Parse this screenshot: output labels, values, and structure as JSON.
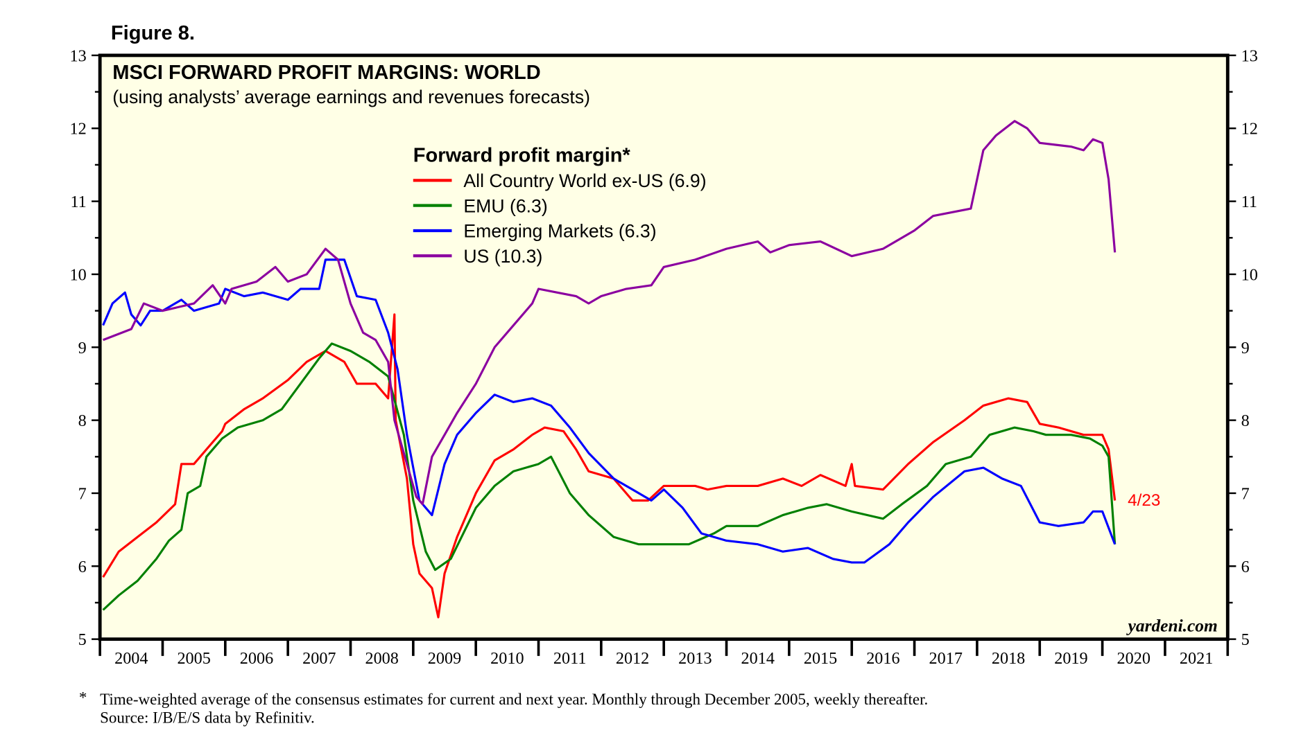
{
  "figure_label": "Figure 8.",
  "watermark": "yardeni.com",
  "footnote": {
    "marker": "*",
    "line1": "Time-weighted average of the consensus estimates for current and next year. Monthly through December 2005, weekly thereafter.",
    "line2": "Source: I/B/E/S data by Refinitiv."
  },
  "chart_data": {
    "type": "line",
    "title": "MSCI FORWARD PROFIT MARGINS: WORLD",
    "subtitle": "(using analysts’ average earnings and revenues forecasts)",
    "legend_title": "Forward profit margin*",
    "legend_placement": "top-center",
    "xlabel": "",
    "ylabel": "",
    "xlim": [
      2004,
      2022
    ],
    "ylim": [
      5,
      13
    ],
    "x_tick_labels": [
      "2004",
      "2005",
      "2006",
      "2007",
      "2008",
      "2009",
      "2010",
      "2011",
      "2012",
      "2013",
      "2014",
      "2015",
      "2016",
      "2017",
      "2018",
      "2019",
      "2020",
      "2021"
    ],
    "y_ticks": [
      5,
      6,
      7,
      8,
      9,
      10,
      11,
      12,
      13
    ],
    "end_annotation": "4/23",
    "end_annotation_color": "#ff0000",
    "series": [
      {
        "name": "All Country World ex-US (6.9)",
        "color": "#ff0000",
        "points": [
          [
            2004.05,
            5.85
          ],
          [
            2004.3,
            6.2
          ],
          [
            2004.6,
            6.4
          ],
          [
            2004.9,
            6.6
          ],
          [
            2005.2,
            6.85
          ],
          [
            2005.3,
            7.4
          ],
          [
            2005.5,
            7.4
          ],
          [
            2005.7,
            7.6
          ],
          [
            2005.95,
            7.85
          ],
          [
            2006.0,
            7.95
          ],
          [
            2006.3,
            8.15
          ],
          [
            2006.6,
            8.3
          ],
          [
            2007.0,
            8.55
          ],
          [
            2007.3,
            8.8
          ],
          [
            2007.6,
            8.95
          ],
          [
            2007.9,
            8.8
          ],
          [
            2008.1,
            8.5
          ],
          [
            2008.4,
            8.5
          ],
          [
            2008.6,
            8.3
          ],
          [
            2008.7,
            9.45
          ],
          [
            2008.72,
            8.0
          ],
          [
            2008.9,
            7.2
          ],
          [
            2009.0,
            6.3
          ],
          [
            2009.1,
            5.9
          ],
          [
            2009.3,
            5.7
          ],
          [
            2009.4,
            5.3
          ],
          [
            2009.5,
            5.9
          ],
          [
            2009.7,
            6.4
          ],
          [
            2010.0,
            7.0
          ],
          [
            2010.3,
            7.45
          ],
          [
            2010.6,
            7.6
          ],
          [
            2010.9,
            7.8
          ],
          [
            2011.1,
            7.9
          ],
          [
            2011.4,
            7.85
          ],
          [
            2011.6,
            7.6
          ],
          [
            2011.8,
            7.3
          ],
          [
            2012.2,
            7.2
          ],
          [
            2012.5,
            6.9
          ],
          [
            2012.75,
            6.9
          ],
          [
            2013.0,
            7.1
          ],
          [
            2013.5,
            7.1
          ],
          [
            2013.7,
            7.05
          ],
          [
            2014.0,
            7.1
          ],
          [
            2014.5,
            7.1
          ],
          [
            2014.9,
            7.2
          ],
          [
            2015.2,
            7.1
          ],
          [
            2015.5,
            7.25
          ],
          [
            2015.9,
            7.1
          ],
          [
            2016.0,
            7.4
          ],
          [
            2016.05,
            7.1
          ],
          [
            2016.5,
            7.05
          ],
          [
            2016.9,
            7.4
          ],
          [
            2017.3,
            7.7
          ],
          [
            2017.8,
            8.0
          ],
          [
            2018.1,
            8.2
          ],
          [
            2018.5,
            8.3
          ],
          [
            2018.8,
            8.25
          ],
          [
            2019.0,
            7.95
          ],
          [
            2019.3,
            7.9
          ],
          [
            2019.7,
            7.8
          ],
          [
            2020.0,
            7.8
          ],
          [
            2020.1,
            7.6
          ],
          [
            2020.2,
            6.9
          ]
        ]
      },
      {
        "name": "EMU (6.3)",
        "color": "#008000",
        "points": [
          [
            2004.05,
            5.4
          ],
          [
            2004.3,
            5.6
          ],
          [
            2004.6,
            5.8
          ],
          [
            2004.9,
            6.1
          ],
          [
            2005.1,
            6.35
          ],
          [
            2005.3,
            6.5
          ],
          [
            2005.4,
            7.0
          ],
          [
            2005.6,
            7.1
          ],
          [
            2005.7,
            7.5
          ],
          [
            2005.95,
            7.75
          ],
          [
            2006.2,
            7.9
          ],
          [
            2006.6,
            8.0
          ],
          [
            2006.9,
            8.15
          ],
          [
            2007.2,
            8.5
          ],
          [
            2007.5,
            8.85
          ],
          [
            2007.7,
            9.05
          ],
          [
            2008.0,
            8.95
          ],
          [
            2008.3,
            8.8
          ],
          [
            2008.6,
            8.6
          ],
          [
            2008.85,
            7.8
          ],
          [
            2009.0,
            6.9
          ],
          [
            2009.2,
            6.2
          ],
          [
            2009.35,
            5.95
          ],
          [
            2009.6,
            6.1
          ],
          [
            2010.0,
            6.8
          ],
          [
            2010.3,
            7.1
          ],
          [
            2010.6,
            7.3
          ],
          [
            2011.0,
            7.4
          ],
          [
            2011.2,
            7.5
          ],
          [
            2011.5,
            7.0
          ],
          [
            2011.8,
            6.7
          ],
          [
            2012.2,
            6.4
          ],
          [
            2012.6,
            6.3
          ],
          [
            2013.0,
            6.3
          ],
          [
            2013.4,
            6.3
          ],
          [
            2013.8,
            6.45
          ],
          [
            2014.0,
            6.55
          ],
          [
            2014.5,
            6.55
          ],
          [
            2014.9,
            6.7
          ],
          [
            2015.3,
            6.8
          ],
          [
            2015.6,
            6.85
          ],
          [
            2016.0,
            6.75
          ],
          [
            2016.5,
            6.65
          ],
          [
            2016.8,
            6.85
          ],
          [
            2017.2,
            7.1
          ],
          [
            2017.5,
            7.4
          ],
          [
            2017.9,
            7.5
          ],
          [
            2018.2,
            7.8
          ],
          [
            2018.6,
            7.9
          ],
          [
            2018.9,
            7.85
          ],
          [
            2019.1,
            7.8
          ],
          [
            2019.5,
            7.8
          ],
          [
            2019.8,
            7.75
          ],
          [
            2020.0,
            7.65
          ],
          [
            2020.1,
            7.5
          ],
          [
            2020.2,
            6.3
          ]
        ]
      },
      {
        "name": "Emerging Markets (6.3)",
        "color": "#0000ff",
        "points": [
          [
            2004.05,
            9.3
          ],
          [
            2004.2,
            9.6
          ],
          [
            2004.4,
            9.75
          ],
          [
            2004.5,
            9.45
          ],
          [
            2004.65,
            9.3
          ],
          [
            2004.8,
            9.5
          ],
          [
            2005.0,
            9.5
          ],
          [
            2005.3,
            9.65
          ],
          [
            2005.5,
            9.5
          ],
          [
            2005.9,
            9.6
          ],
          [
            2006.0,
            9.8
          ],
          [
            2006.3,
            9.7
          ],
          [
            2006.6,
            9.75
          ],
          [
            2007.0,
            9.65
          ],
          [
            2007.2,
            9.8
          ],
          [
            2007.5,
            9.8
          ],
          [
            2007.6,
            10.2
          ],
          [
            2007.9,
            10.2
          ],
          [
            2008.1,
            9.7
          ],
          [
            2008.4,
            9.65
          ],
          [
            2008.6,
            9.2
          ],
          [
            2008.75,
            8.7
          ],
          [
            2008.9,
            7.8
          ],
          [
            2009.1,
            6.9
          ],
          [
            2009.3,
            6.7
          ],
          [
            2009.5,
            7.4
          ],
          [
            2009.7,
            7.8
          ],
          [
            2010.0,
            8.1
          ],
          [
            2010.3,
            8.35
          ],
          [
            2010.6,
            8.25
          ],
          [
            2010.9,
            8.3
          ],
          [
            2011.2,
            8.2
          ],
          [
            2011.5,
            7.9
          ],
          [
            2011.8,
            7.55
          ],
          [
            2012.2,
            7.2
          ],
          [
            2012.5,
            7.05
          ],
          [
            2012.8,
            6.9
          ],
          [
            2013.0,
            7.05
          ],
          [
            2013.3,
            6.8
          ],
          [
            2013.6,
            6.45
          ],
          [
            2014.0,
            6.35
          ],
          [
            2014.5,
            6.3
          ],
          [
            2014.9,
            6.2
          ],
          [
            2015.3,
            6.25
          ],
          [
            2015.7,
            6.1
          ],
          [
            2016.0,
            6.05
          ],
          [
            2016.2,
            6.05
          ],
          [
            2016.6,
            6.3
          ],
          [
            2016.9,
            6.6
          ],
          [
            2017.3,
            6.95
          ],
          [
            2017.8,
            7.3
          ],
          [
            2018.1,
            7.35
          ],
          [
            2018.4,
            7.2
          ],
          [
            2018.7,
            7.1
          ],
          [
            2019.0,
            6.6
          ],
          [
            2019.3,
            6.55
          ],
          [
            2019.7,
            6.6
          ],
          [
            2019.85,
            6.75
          ],
          [
            2020.0,
            6.75
          ],
          [
            2020.2,
            6.3
          ]
        ]
      },
      {
        "name": "US (10.3)",
        "color": "#8b00a0",
        "points": [
          [
            2004.05,
            9.1
          ],
          [
            2004.5,
            9.25
          ],
          [
            2004.7,
            9.6
          ],
          [
            2005.0,
            9.5
          ],
          [
            2005.5,
            9.6
          ],
          [
            2005.8,
            9.85
          ],
          [
            2006.0,
            9.6
          ],
          [
            2006.1,
            9.8
          ],
          [
            2006.5,
            9.9
          ],
          [
            2006.8,
            10.1
          ],
          [
            2007.0,
            9.9
          ],
          [
            2007.3,
            10.0
          ],
          [
            2007.6,
            10.35
          ],
          [
            2007.8,
            10.2
          ],
          [
            2008.0,
            9.6
          ],
          [
            2008.2,
            9.2
          ],
          [
            2008.4,
            9.1
          ],
          [
            2008.6,
            8.8
          ],
          [
            2008.7,
            8.0
          ],
          [
            2008.9,
            7.4
          ],
          [
            2009.05,
            6.95
          ],
          [
            2009.15,
            6.85
          ],
          [
            2009.3,
            7.5
          ],
          [
            2009.5,
            7.8
          ],
          [
            2009.7,
            8.1
          ],
          [
            2010.0,
            8.5
          ],
          [
            2010.3,
            9.0
          ],
          [
            2010.6,
            9.3
          ],
          [
            2010.9,
            9.6
          ],
          [
            2011.0,
            9.8
          ],
          [
            2011.3,
            9.75
          ],
          [
            2011.6,
            9.7
          ],
          [
            2011.8,
            9.6
          ],
          [
            2012.0,
            9.7
          ],
          [
            2012.4,
            9.8
          ],
          [
            2012.8,
            9.85
          ],
          [
            2013.0,
            10.1
          ],
          [
            2013.5,
            10.2
          ],
          [
            2014.0,
            10.35
          ],
          [
            2014.5,
            10.45
          ],
          [
            2014.7,
            10.3
          ],
          [
            2015.0,
            10.4
          ],
          [
            2015.5,
            10.45
          ],
          [
            2016.0,
            10.25
          ],
          [
            2016.5,
            10.35
          ],
          [
            2017.0,
            10.6
          ],
          [
            2017.3,
            10.8
          ],
          [
            2017.9,
            10.9
          ],
          [
            2018.1,
            11.7
          ],
          [
            2018.3,
            11.9
          ],
          [
            2018.6,
            12.1
          ],
          [
            2018.8,
            12.0
          ],
          [
            2019.0,
            11.8
          ],
          [
            2019.5,
            11.75
          ],
          [
            2019.7,
            11.7
          ],
          [
            2019.85,
            11.85
          ],
          [
            2020.0,
            11.8
          ],
          [
            2020.1,
            11.3
          ],
          [
            2020.2,
            10.3
          ]
        ]
      }
    ]
  }
}
